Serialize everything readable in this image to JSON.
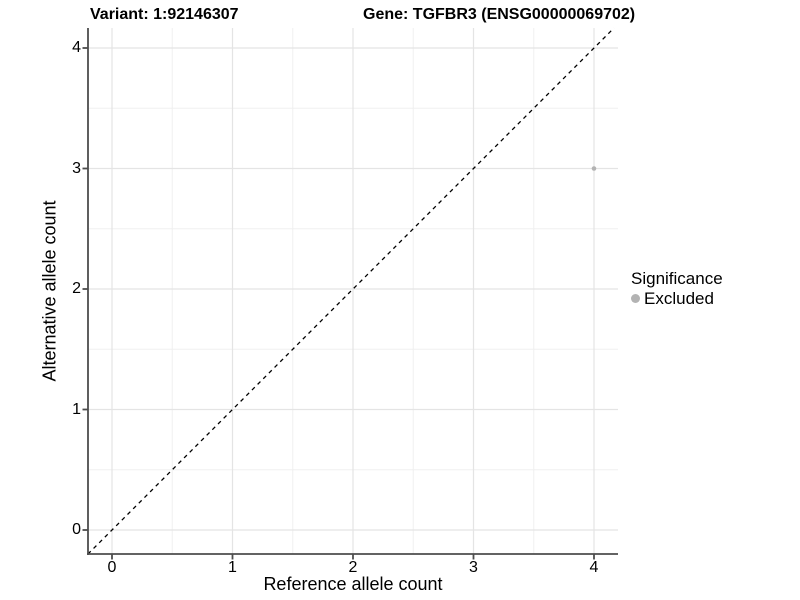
{
  "chart_data": {
    "type": "scatter",
    "title_left": "Variant: 1:92146307",
    "title_right": "Gene: TGFBR3 (ENSG00000069702)",
    "xlabel": "Reference allele count",
    "ylabel": "Alternative allele count",
    "xticks": [
      "0",
      "1",
      "2",
      "3",
      "4"
    ],
    "yticks": [
      "0",
      "1",
      "2",
      "3",
      "4"
    ],
    "xlim": [
      -0.2,
      4.2
    ],
    "ylim": [
      -0.2,
      4.2
    ],
    "minor_step": 0.5,
    "grid": "major+minor",
    "reference_line": {
      "type": "identity y=x",
      "style": "dashed",
      "color": "#000000"
    },
    "series": [
      {
        "name": "Excluded",
        "color": "#b3b3b3",
        "points": [
          {
            "x": 4,
            "y": 3
          }
        ]
      }
    ],
    "legend": {
      "title": "Significance",
      "position": "right",
      "items": [
        {
          "label": "Excluded",
          "color": "#b3b3b3"
        }
      ]
    }
  },
  "colors": {
    "background": "#ffffff",
    "grid_major": "#e4e4e4",
    "grid_minor": "#f0f0f0",
    "axis_line": "#4d4d4d",
    "point_gray": "#b3b3b3",
    "text": "#000000"
  }
}
